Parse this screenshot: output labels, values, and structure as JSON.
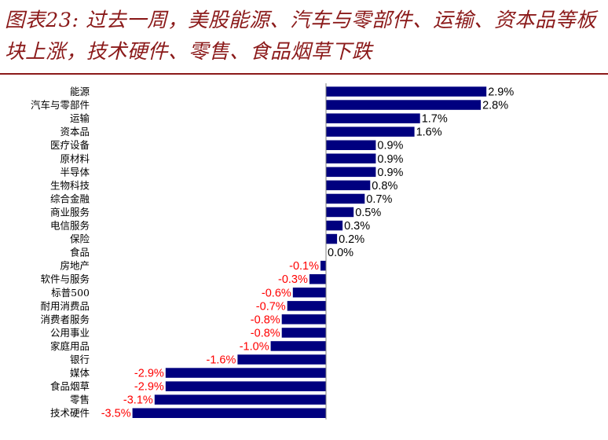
{
  "title": "图表23: 过去一周，美股能源、汽车与零部件、运输、资本品等板块上涨，技术硬件、零售、食品烟草下跌",
  "colors": {
    "title": "#8b1a1a",
    "bar": "#00007f",
    "negative_label": "#ff0000",
    "positive_label": "#000000",
    "axis": "#7f7f7f"
  },
  "chart_data": {
    "type": "bar",
    "orientation": "horizontal",
    "title": "",
    "xlabel": "",
    "ylabel": "",
    "value_suffix": "%",
    "xlim": [
      -3.5,
      2.9
    ],
    "grid": false,
    "legend": "none",
    "categories": [
      "能源",
      "汽车与零部件",
      "运输",
      "资本品",
      "医疗设备",
      "原材料",
      "半导体",
      "生物科技",
      "综合金融",
      "商业服务",
      "电信服务",
      "保险",
      "食品",
      "房地产",
      "软件与服务",
      "标普500",
      "耐用消费品",
      "消费者服务",
      "公用事业",
      "家庭用品",
      "银行",
      "媒体",
      "食品烟草",
      "零售",
      "技术硬件"
    ],
    "values": [
      2.9,
      2.8,
      1.7,
      1.6,
      0.9,
      0.9,
      0.9,
      0.8,
      0.7,
      0.5,
      0.3,
      0.2,
      0.0,
      -0.1,
      -0.3,
      -0.6,
      -0.7,
      -0.8,
      -0.8,
      -1.0,
      -1.6,
      -2.9,
      -2.9,
      -3.1,
      -3.5
    ],
    "data_labels": [
      "2.9%",
      "2.8%",
      "1.7%",
      "1.6%",
      "0.9%",
      "0.9%",
      "0.9%",
      "0.8%",
      "0.7%",
      "0.5%",
      "0.3%",
      "0.2%",
      "0.0%",
      "-0.1%",
      "-0.3%",
      "-0.6%",
      "-0.7%",
      "-0.8%",
      "-0.8%",
      "-1.0%",
      "-1.6%",
      "-2.9%",
      "-2.9%",
      "-3.1%",
      "-3.5%"
    ]
  }
}
